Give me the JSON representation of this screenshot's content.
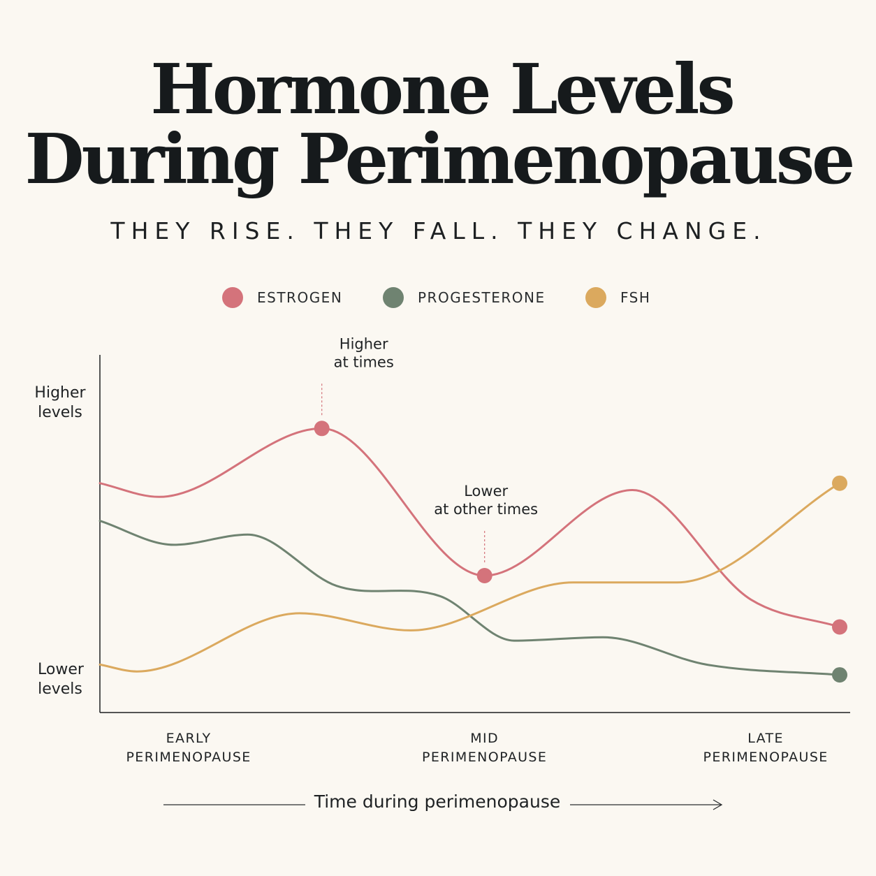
{
  "chart_data": {
    "type": "line",
    "title": [
      "Hormone Levels",
      "During Perimenopause"
    ],
    "subtitle": "THEY RISE. THEY FALL. THEY CHANGE.",
    "xlabel": "Time during perimenopause",
    "y_tick_labels": {
      "high": [
        "Higher",
        "levels"
      ],
      "low": [
        "Lower",
        "levels"
      ]
    },
    "x_tick_labels": [
      {
        "lines": [
          "EARLY",
          "PERIMENOPAUSE"
        ],
        "x": 0.12
      },
      {
        "lines": [
          "MID",
          "PERIMENOPAUSE"
        ],
        "x": 0.52
      },
      {
        "lines": [
          "LATE",
          "PERIMENOPAUSE"
        ],
        "x": 0.9
      }
    ],
    "x_range": [
      0,
      1
    ],
    "y_range": [
      0,
      1
    ],
    "grid": false,
    "legend_position": "top-center",
    "series": [
      {
        "name": "ESTROGEN",
        "color": "#d4737b",
        "points": [
          [
            0,
            0.67
          ],
          [
            0.08,
            0.63
          ],
          [
            0.3,
            0.83
          ],
          [
            0.52,
            0.4
          ],
          [
            0.72,
            0.65
          ],
          [
            0.88,
            0.33
          ],
          [
            1,
            0.25
          ]
        ],
        "markers": [
          2,
          3,
          6
        ]
      },
      {
        "name": "PROGESTERONE",
        "color": "#6f8371",
        "points": [
          [
            0,
            0.56
          ],
          [
            0.1,
            0.49
          ],
          [
            0.2,
            0.52
          ],
          [
            0.32,
            0.37
          ],
          [
            0.46,
            0.34
          ],
          [
            0.56,
            0.21
          ],
          [
            0.68,
            0.22
          ],
          [
            0.82,
            0.14
          ],
          [
            1,
            0.11
          ]
        ],
        "markers": [
          8
        ]
      },
      {
        "name": "FSH",
        "color": "#dba95e",
        "points": [
          [
            0,
            0.14
          ],
          [
            0.05,
            0.12
          ],
          [
            0.27,
            0.29
          ],
          [
            0.42,
            0.24
          ],
          [
            0.64,
            0.38
          ],
          [
            0.78,
            0.38
          ],
          [
            1,
            0.67
          ]
        ],
        "markers": [
          6
        ]
      }
    ],
    "annotations": [
      {
        "lines": [
          "Higher",
          "at times"
        ],
        "series": 0,
        "point": 2
      },
      {
        "lines": [
          "Lower",
          "at other times"
        ],
        "series": 0,
        "point": 3
      }
    ]
  }
}
